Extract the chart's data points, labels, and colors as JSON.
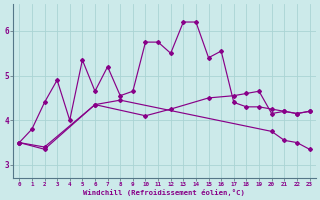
{
  "x": [
    0,
    1,
    2,
    3,
    4,
    5,
    6,
    7,
    8,
    9,
    10,
    11,
    12,
    13,
    14,
    15,
    16,
    17,
    18,
    19,
    20,
    21,
    22,
    23
  ],
  "line1_x": [
    0,
    1,
    2,
    3,
    4,
    5,
    6,
    7,
    8,
    9,
    10,
    11,
    12,
    13,
    14,
    15,
    16,
    17,
    18,
    19,
    20,
    21,
    22,
    23
  ],
  "line1_y": [
    3.5,
    3.8,
    4.4,
    4.9,
    4.0,
    5.35,
    4.65,
    5.2,
    4.55,
    4.65,
    5.75,
    5.75,
    5.5,
    6.2,
    6.2,
    5.4,
    5.55,
    4.4,
    4.3,
    4.3,
    4.25,
    4.2,
    4.15,
    4.2
  ],
  "line2_x": [
    0,
    2,
    6,
    8,
    20,
    21,
    22,
    23
  ],
  "line2_y": [
    3.5,
    3.35,
    4.35,
    4.45,
    3.75,
    3.55,
    3.5,
    3.35
  ],
  "line3_x": [
    0,
    2,
    6,
    10,
    12,
    15,
    17,
    18,
    19,
    20,
    21,
    22,
    23
  ],
  "line3_y": [
    3.5,
    3.4,
    4.35,
    4.1,
    4.25,
    4.5,
    4.55,
    4.6,
    4.65,
    4.15,
    4.2,
    4.15,
    4.2
  ],
  "bg_color": "#cceaea",
  "line_color": "#880088",
  "grid_color": "#aad4d4",
  "ylabel_ticks": [
    3,
    4,
    5,
    6
  ],
  "xlim": [
    -0.5,
    23.5
  ],
  "ylim": [
    2.7,
    6.6
  ],
  "xlabel": "Windchill (Refroidissement éolien,°C)",
  "xtick_labels": [
    "0",
    "1",
    "2",
    "3",
    "4",
    "5",
    "6",
    "7",
    "8",
    "9",
    "10",
    "11",
    "12",
    "13",
    "14",
    "15",
    "16",
    "17",
    "18",
    "19",
    "20",
    "21",
    "22",
    "23"
  ]
}
